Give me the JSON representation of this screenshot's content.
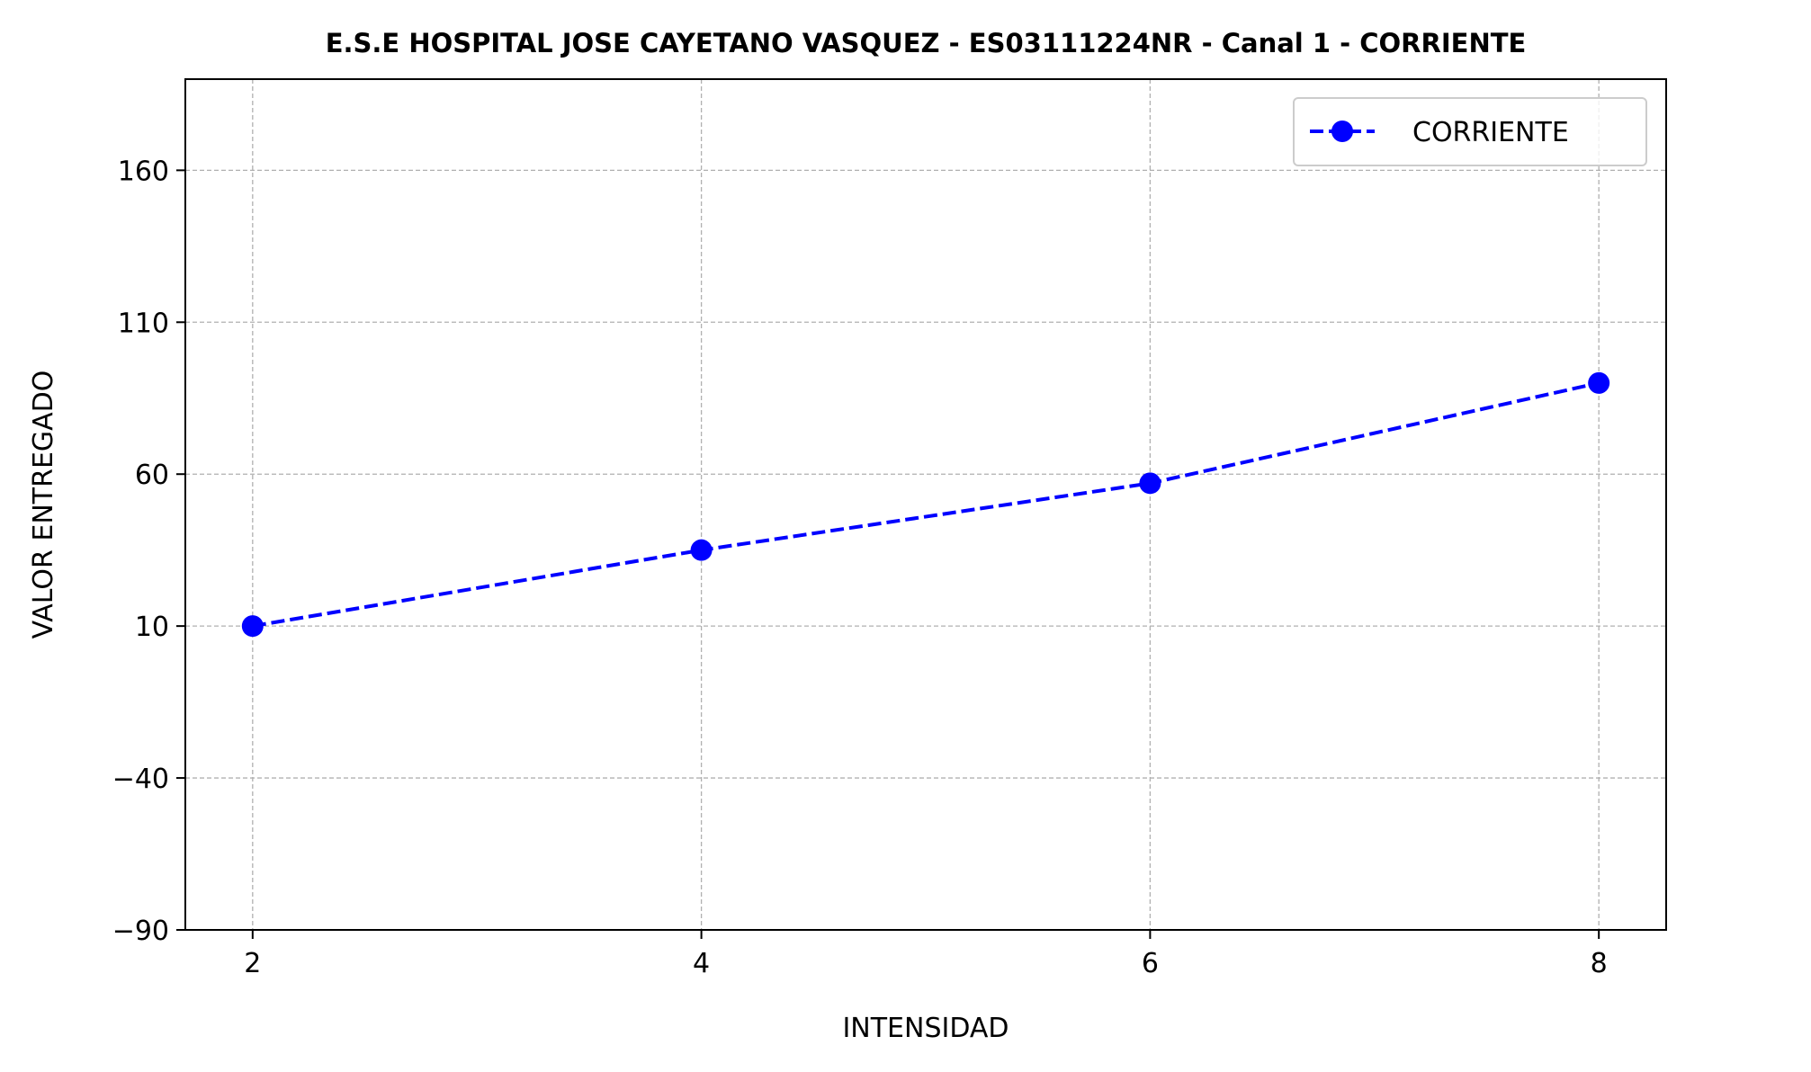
{
  "chart_data": {
    "type": "line",
    "title": "E.S.E HOSPITAL JOSE CAYETANO VASQUEZ - ES03111224NR - Canal 1 - CORRIENTE",
    "xlabel": "INTENSIDAD",
    "ylabel": "VALOR ENTREGADO",
    "x": [
      2,
      4,
      6,
      8
    ],
    "series": [
      {
        "name": "CORRIENTE",
        "values": [
          10,
          35,
          57,
          90
        ],
        "color": "#0000ff",
        "line_style": "dashed",
        "marker": "circle"
      }
    ],
    "xlim": [
      1.7,
      8.3
    ],
    "ylim": [
      -90,
      190
    ],
    "xticks": [
      2,
      4,
      6,
      8
    ],
    "xtick_labels": [
      "2",
      "4",
      "6",
      "8"
    ],
    "yticks": [
      -90,
      -40,
      10,
      60,
      110,
      160
    ],
    "ytick_labels": [
      "−90",
      "−40",
      "10",
      "60",
      "110",
      "160"
    ],
    "grid": true,
    "legend_position": "upper right"
  }
}
